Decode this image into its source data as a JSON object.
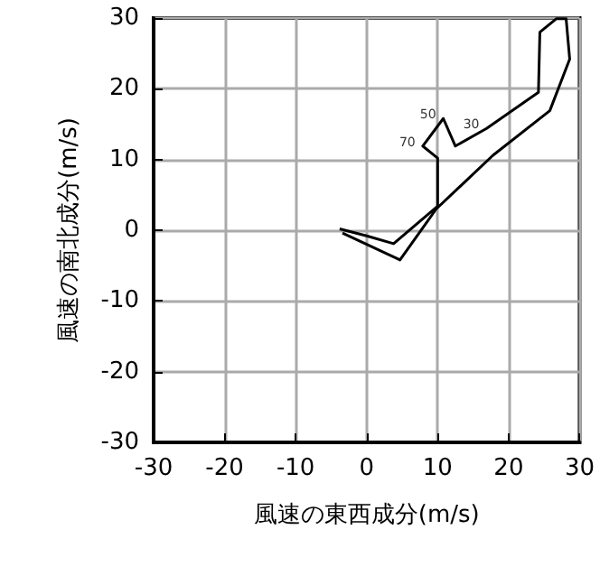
{
  "chart_data": {
    "type": "line",
    "xlabel": "風速の東西成分(m/s)",
    "ylabel": "風速の南北成分(m/s)",
    "x": [
      -3.8,
      0,
      3.8,
      10,
      10,
      7.9,
      10.8,
      12.5,
      16.9,
      24.2,
      24.4,
      26.7,
      28.1,
      28.6,
      25.8,
      17.8,
      9.8,
      4.7,
      -3.4
    ],
    "series": [
      {
        "color": "#000000",
        "values": [
          0.2,
          -0.8,
          -1.9,
          3.4,
          10.2,
          11.9,
          15.8,
          11.9,
          14.4,
          19.5,
          28,
          29.9,
          29.9,
          24.2,
          16.9,
          10.6,
          3,
          -4.2,
          -0.4
        ]
      }
    ],
    "annotations": [
      {
        "text": "30",
        "x": 16.9,
        "y": 14.4
      },
      {
        "text": "50",
        "x": 10.8,
        "y": 15.8
      },
      {
        "text": "70",
        "x": 7.9,
        "y": 11.9
      }
    ],
    "xlim": [
      -30,
      30
    ],
    "ylim": [
      -30,
      30
    ],
    "xticks": [
      -30,
      -20,
      -10,
      0,
      10,
      20,
      30
    ],
    "yticks": [
      -30,
      -20,
      -10,
      0,
      10,
      20,
      30
    ],
    "grid": true,
    "marker": "none",
    "line_style": "solid"
  }
}
